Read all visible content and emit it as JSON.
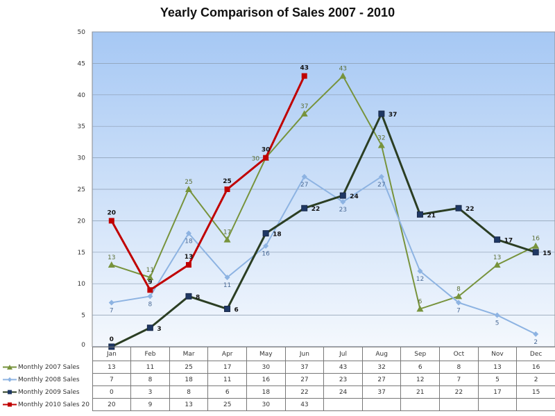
{
  "chart_data": {
    "type": "line",
    "title": "Yearly  Comparison of Sales 2007 - 2010",
    "categories": [
      "Jan",
      "Feb",
      "Mar",
      "Apr",
      "May",
      "Jun",
      "Jul",
      "Aug",
      "Sep",
      "Oct",
      "Nov",
      "Dec"
    ],
    "ylim": [
      0,
      50
    ],
    "yticks": [
      0,
      5,
      10,
      15,
      20,
      25,
      30,
      35,
      40,
      45,
      50
    ],
    "grid": true,
    "legend": "bottom-left data table",
    "series": [
      {
        "name": "Monthly 2007 Sales",
        "color": "#77933c",
        "marker": "triangle",
        "values": [
          13,
          11,
          25,
          17,
          30,
          37,
          43,
          32,
          6,
          8,
          13,
          16
        ]
      },
      {
        "name": "Monthly 2008 Sales",
        "color": "#8db3e2",
        "marker": "diamond",
        "values": [
          7,
          8,
          18,
          11,
          16,
          27,
          23,
          27,
          12,
          7,
          5,
          2
        ]
      },
      {
        "name": "Monthly 2009 Sales",
        "color": "#2b3e23",
        "marker": "square",
        "marker_color": "#1f3864",
        "values": [
          0,
          3,
          8,
          6,
          18,
          22,
          24,
          37,
          21,
          22,
          17,
          15
        ]
      },
      {
        "name": "Monthly 2010 Sales 20",
        "color": "#c00000",
        "marker": "square",
        "values": [
          20,
          9,
          13,
          25,
          30,
          43,
          null,
          null,
          null,
          null,
          null,
          null
        ]
      }
    ]
  }
}
